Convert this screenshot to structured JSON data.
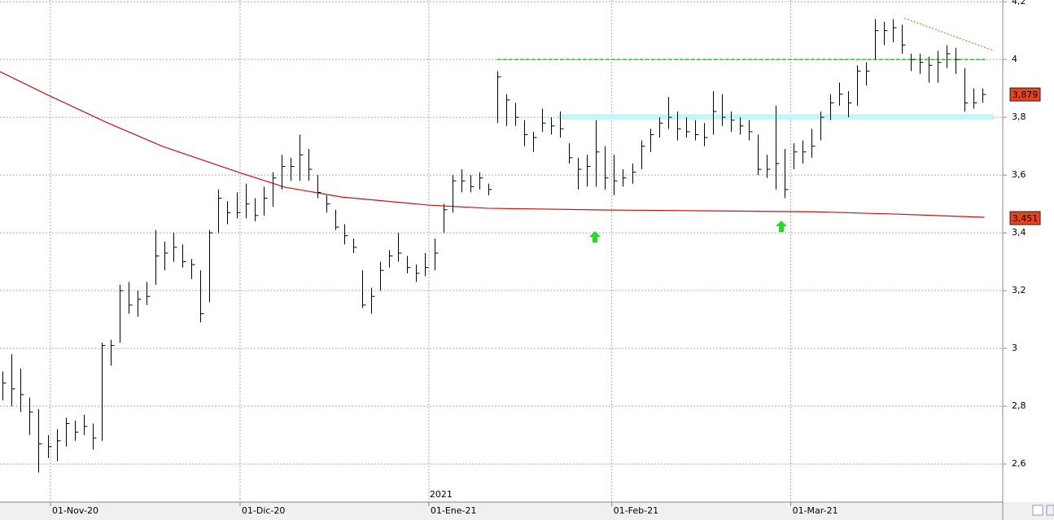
{
  "chart_data": {
    "type": "ohlc",
    "xlim": [
      -0.3,
      110.6
    ],
    "ylim": [
      2.468,
      4.206
    ],
    "yticks": [
      {
        "value": 2.6,
        "label": "2,6"
      },
      {
        "value": 2.8,
        "label": "2,8"
      },
      3,
      {
        "value": 3.2,
        "label": "3,2"
      },
      {
        "value": 3.4,
        "label": "3,4"
      },
      {
        "value": 3.6,
        "label": "3,6"
      },
      {
        "value": 3.8,
        "label": "3,8"
      },
      4,
      {
        "value": 4.2,
        "label": "4,2"
      }
    ],
    "xticks": [
      {
        "value": 5.31,
        "label": "01-Nov-20"
      },
      {
        "value": 26.4,
        "label": "01-Dic-20"
      },
      {
        "value": 47.4,
        "label": "01-Ene-21"
      },
      {
        "value": 67.75,
        "label": "01-Feb-21"
      },
      {
        "value": 87.66,
        "label": "01-Mar-21"
      }
    ],
    "year_annotation": {
      "x": 47.4,
      "label": "2021"
    },
    "grid": true,
    "bar_color": "#000000",
    "high": [
      2.92,
      2.98,
      2.93,
      2.83,
      2.79,
      2.7,
      2.72,
      2.76,
      2.75,
      2.77,
      2.74,
      3.02,
      3.03,
      3.22,
      3.23,
      3.2,
      3.23,
      3.41,
      3.37,
      3.4,
      3.36,
      3.31,
      3.27,
      3.41,
      3.55,
      3.51,
      3.54,
      3.57,
      3.52,
      3.56,
      3.61,
      3.67,
      3.66,
      3.74,
      3.69,
      3.6,
      3.53,
      3.48,
      3.43,
      3.38,
      3.27,
      3.21,
      3.3,
      3.34,
      3.4,
      3.32,
      3.29,
      3.33,
      3.38,
      3.5,
      3.6,
      3.62,
      3.6,
      3.61,
      3.57,
      3.96,
      3.88,
      3.85,
      3.79,
      3.75,
      3.83,
      3.8,
      3.82,
      3.71,
      3.66,
      3.67,
      3.79,
      3.7,
      3.67,
      3.62,
      3.64,
      3.72,
      3.76,
      3.8,
      3.87,
      3.82,
      3.8,
      3.79,
      3.78,
      3.89,
      3.88,
      3.82,
      3.8,
      3.79,
      3.74,
      3.67,
      3.84,
      3.69,
      3.71,
      3.72,
      3.76,
      3.82,
      3.88,
      3.92,
      3.89,
      3.98,
      3.99,
      4.14,
      4.13,
      4.14,
      4.12,
      4.02,
      4.02,
      4.01,
      4.03,
      4.05,
      4.04,
      3.97,
      3.9,
      3.9
    ],
    "low": [
      2.82,
      2.8,
      2.78,
      2.7,
      2.57,
      2.62,
      2.61,
      2.66,
      2.68,
      2.7,
      2.65,
      2.68,
      2.94,
      3.02,
      3.12,
      3.11,
      3.15,
      3.22,
      3.27,
      3.3,
      3.28,
      3.24,
      3.09,
      3.16,
      3.4,
      3.43,
      3.45,
      3.45,
      3.44,
      3.46,
      3.49,
      3.55,
      3.58,
      3.58,
      3.58,
      3.52,
      3.47,
      3.41,
      3.36,
      3.33,
      3.14,
      3.12,
      3.2,
      3.28,
      3.3,
      3.26,
      3.23,
      3.25,
      3.27,
      3.4,
      3.47,
      3.54,
      3.54,
      3.55,
      3.53,
      3.78,
      3.77,
      3.77,
      3.7,
      3.68,
      3.75,
      3.74,
      3.73,
      3.64,
      3.55,
      3.56,
      3.56,
      3.55,
      3.53,
      3.56,
      3.57,
      3.62,
      3.68,
      3.73,
      3.76,
      3.72,
      3.73,
      3.72,
      3.7,
      3.74,
      3.77,
      3.75,
      3.74,
      3.72,
      3.6,
      3.59,
      3.55,
      3.52,
      3.62,
      3.64,
      3.66,
      3.72,
      3.79,
      3.84,
      3.8,
      3.84,
      3.91,
      4.0,
      4.05,
      4.06,
      4.02,
      3.96,
      3.95,
      3.92,
      3.92,
      3.97,
      3.95,
      3.82,
      3.83,
      3.85
    ],
    "close": [
      2.88,
      2.86,
      2.84,
      2.78,
      2.67,
      2.66,
      2.68,
      2.74,
      2.71,
      2.73,
      2.69,
      3.01,
      3.01,
      3.2,
      3.15,
      3.17,
      3.18,
      3.32,
      3.33,
      3.35,
      3.3,
      3.29,
      3.12,
      3.4,
      3.52,
      3.47,
      3.47,
      3.5,
      3.46,
      3.52,
      3.59,
      3.63,
      3.63,
      3.67,
      3.62,
      3.54,
      3.5,
      3.42,
      3.39,
      3.35,
      3.15,
      3.18,
      3.27,
      3.32,
      3.33,
      3.28,
      3.26,
      3.28,
      3.33,
      3.48,
      3.58,
      3.58,
      3.56,
      3.59,
      3.55,
      3.94,
      3.86,
      3.8,
      3.74,
      3.73,
      3.78,
      3.77,
      3.76,
      3.66,
      3.62,
      3.63,
      3.68,
      3.59,
      3.58,
      3.59,
      3.61,
      3.7,
      3.74,
      3.78,
      3.8,
      3.76,
      3.75,
      3.74,
      3.73,
      3.82,
      3.8,
      3.79,
      3.77,
      3.75,
      3.62,
      3.62,
      3.64,
      3.55,
      3.68,
      3.68,
      3.7,
      3.8,
      3.85,
      3.88,
      3.85,
      3.96,
      3.96,
      4.1,
      4.1,
      4.11,
      4.05,
      4.0,
      3.99,
      3.98,
      3.99,
      4.02,
      4.0,
      3.85,
      3.85,
      3.879
    ],
    "moving_average": {
      "color": "#cc1111",
      "x": [
        -0.3,
        5.1,
        11.5,
        17.8,
        26.4,
        31.4,
        37.7,
        47.4,
        54,
        67.6,
        90.2,
        99.3,
        109.2
      ],
      "values": [
        3.958,
        3.876,
        3.783,
        3.699,
        3.608,
        3.558,
        3.524,
        3.496,
        3.485,
        3.479,
        3.473,
        3.465,
        3.454
      ]
    },
    "resistance_line": {
      "color": "#22cc22",
      "x": [
        55,
        109.3
      ],
      "values": [
        4.0,
        4.0
      ]
    },
    "support_band": {
      "color": "#c6f4f8",
      "x": [
        61.8,
        110.3
      ],
      "values": [
        3.792,
        3.811
      ]
    },
    "trend_line": {
      "color": "#f08a4b",
      "x": [
        100.3,
        110.2
      ],
      "values": [
        4.143,
        4.031
      ]
    },
    "price_markers": [
      {
        "value": 3.879,
        "label": "3,879"
      },
      {
        "value": 3.451,
        "label": "3,451"
      }
    ],
    "marker_color": "#e8441c"
  }
}
